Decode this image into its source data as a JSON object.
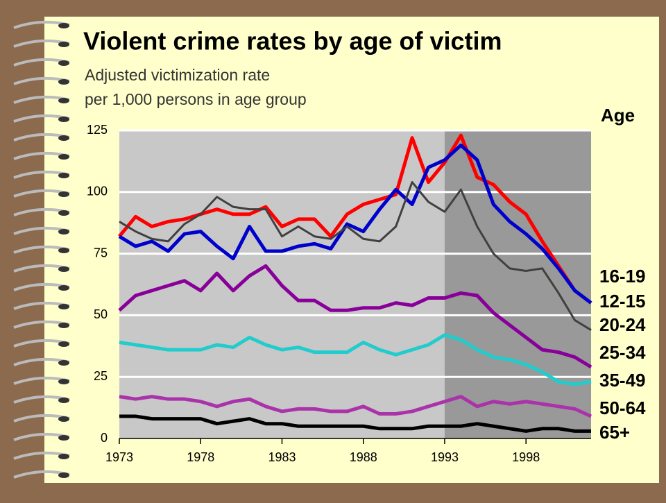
{
  "chart_data": {
    "type": "line",
    "title": "Violent crime rates by age of victim",
    "subtitle": [
      "Adjusted victimization rate",
      "per 1,000 persons in age group"
    ],
    "legend_title": "Age",
    "x": [
      1973,
      1974,
      1975,
      1976,
      1977,
      1978,
      1979,
      1980,
      1981,
      1982,
      1983,
      1984,
      1985,
      1986,
      1987,
      1988,
      1989,
      1990,
      1991,
      1992,
      1993,
      1994,
      1995,
      1996,
      1997,
      1998,
      1999,
      2000,
      2001,
      2002
    ],
    "xlim": [
      1973,
      2002
    ],
    "xticks": [
      1973,
      1978,
      1983,
      1988,
      1993,
      1998
    ],
    "ylim": [
      0,
      125
    ],
    "yticks": [
      0,
      25,
      50,
      75,
      100,
      125
    ],
    "grid": true,
    "shaded_from": 1993,
    "series": [
      {
        "name": "16-19",
        "color": "#ff0000",
        "values": [
          82,
          90,
          86,
          88,
          89,
          91,
          93,
          91,
          91,
          94,
          86,
          89,
          89,
          82,
          91,
          95,
          97,
          99,
          122,
          104,
          112,
          123,
          106,
          103,
          96,
          91,
          80,
          70,
          60,
          55
        ]
      },
      {
        "name": "12-15",
        "color": "#0000cc",
        "values": [
          82,
          78,
          80,
          76,
          83,
          84,
          78,
          73,
          86,
          76,
          76,
          78,
          79,
          77,
          87,
          84,
          93,
          101,
          95,
          110,
          113,
          119,
          113,
          95,
          88,
          83,
          77,
          69,
          60,
          55
        ]
      },
      {
        "name": "20-24",
        "color": "#404040",
        "values": [
          88,
          84,
          81,
          80,
          87,
          91,
          98,
          94,
          93,
          93,
          82,
          86,
          82,
          81,
          86,
          81,
          80,
          86,
          104,
          96,
          92,
          101,
          86,
          75,
          69,
          68,
          69,
          59,
          48,
          44
        ]
      },
      {
        "name": "25-34",
        "color": "#880099",
        "values": [
          52,
          58,
          60,
          62,
          64,
          60,
          67,
          60,
          66,
          70,
          62,
          56,
          56,
          52,
          52,
          53,
          53,
          55,
          54,
          57,
          57,
          59,
          58,
          51,
          46,
          41,
          36,
          35,
          33,
          29
        ]
      },
      {
        "name": "35-49",
        "color": "#22cccc",
        "values": [
          39,
          38,
          37,
          36,
          36,
          36,
          38,
          37,
          41,
          38,
          36,
          37,
          35,
          35,
          35,
          39,
          36,
          34,
          36,
          38,
          42,
          40,
          36,
          33,
          32,
          30,
          27,
          23,
          22,
          23
        ]
      },
      {
        "name": "50-64",
        "color": "#aa33aa",
        "values": [
          17,
          16,
          17,
          16,
          16,
          15,
          13,
          15,
          16,
          13,
          11,
          12,
          12,
          11,
          11,
          13,
          10,
          10,
          11,
          13,
          15,
          17,
          13,
          15,
          14,
          15,
          14,
          13,
          12,
          9
        ]
      },
      {
        "name": "65+",
        "color": "#000000",
        "values": [
          9,
          9,
          8,
          8,
          8,
          8,
          6,
          7,
          8,
          6,
          6,
          5,
          5,
          5,
          5,
          5,
          4,
          4,
          4,
          5,
          5,
          5,
          6,
          5,
          4,
          3,
          4,
          4,
          3,
          3
        ]
      }
    ]
  }
}
